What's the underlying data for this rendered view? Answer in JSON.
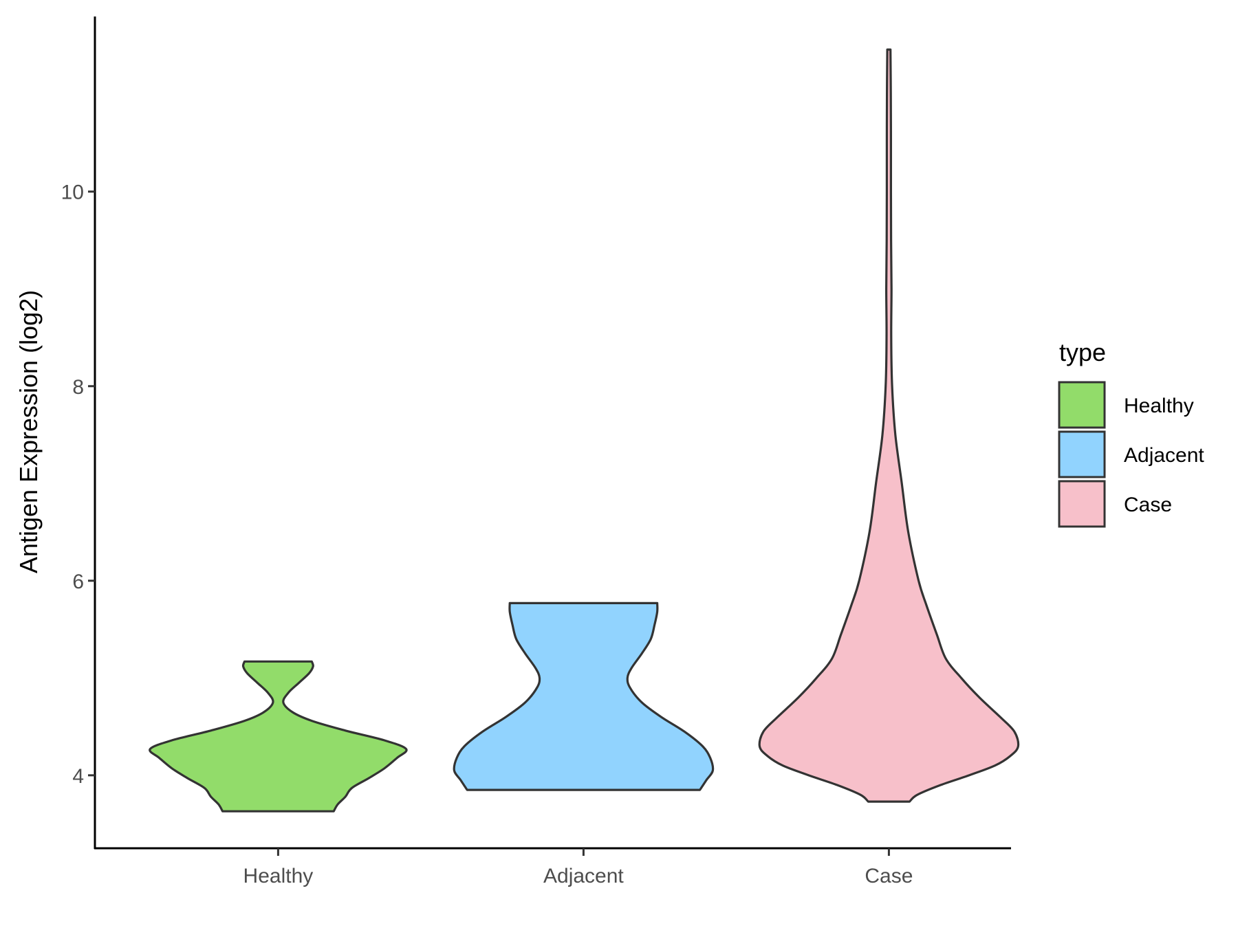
{
  "chart_data": {
    "type": "violin",
    "title": "",
    "xlabel": "",
    "ylabel": "Antigen Expression (log2)",
    "ylim": [
      3.25,
      11.8
    ],
    "yticks": [
      4,
      6,
      8,
      10
    ],
    "grid": false,
    "categories": [
      "Healthy",
      "Adjacent",
      "Case"
    ],
    "colors": {
      "Healthy": "#92dc6a",
      "Adjacent": "#91d3fe",
      "Case": "#f7c0ca",
      "outline": "#333333"
    },
    "legend": {
      "title": "type",
      "position": "right",
      "entries": [
        "Healthy",
        "Adjacent",
        "Case"
      ]
    },
    "series": [
      {
        "category": "Healthy",
        "min": 3.63,
        "max": 5.17,
        "density_profile": [
          [
            3.63,
            0.43
          ],
          [
            3.7,
            0.46
          ],
          [
            3.78,
            0.52
          ],
          [
            3.87,
            0.57
          ],
          [
            3.97,
            0.7
          ],
          [
            4.07,
            0.82
          ],
          [
            4.18,
            0.92
          ],
          [
            4.27,
            0.99
          ],
          [
            4.36,
            0.82
          ],
          [
            4.46,
            0.52
          ],
          [
            4.56,
            0.26
          ],
          [
            4.65,
            0.11
          ],
          [
            4.75,
            0.04
          ],
          [
            4.85,
            0.08
          ],
          [
            4.95,
            0.16
          ],
          [
            5.05,
            0.24
          ],
          [
            5.12,
            0.27
          ],
          [
            5.17,
            0.26
          ]
        ]
      },
      {
        "category": "Adjacent",
        "min": 3.85,
        "max": 5.77,
        "density_profile": [
          [
            3.85,
            0.9
          ],
          [
            3.95,
            0.95
          ],
          [
            4.05,
            1.0
          ],
          [
            4.18,
            0.98
          ],
          [
            4.3,
            0.92
          ],
          [
            4.45,
            0.78
          ],
          [
            4.6,
            0.6
          ],
          [
            4.75,
            0.45
          ],
          [
            4.9,
            0.36
          ],
          [
            5.0,
            0.34
          ],
          [
            5.1,
            0.37
          ],
          [
            5.25,
            0.45
          ],
          [
            5.4,
            0.52
          ],
          [
            5.55,
            0.55
          ],
          [
            5.68,
            0.57
          ],
          [
            5.77,
            0.57
          ]
        ]
      },
      {
        "category": "Case",
        "min": 3.73,
        "max": 11.46,
        "density_profile": [
          [
            3.73,
            0.16
          ],
          [
            3.8,
            0.22
          ],
          [
            3.9,
            0.4
          ],
          [
            4.0,
            0.62
          ],
          [
            4.1,
            0.82
          ],
          [
            4.2,
            0.94
          ],
          [
            4.3,
            1.0
          ],
          [
            4.45,
            0.97
          ],
          [
            4.6,
            0.86
          ],
          [
            4.8,
            0.7
          ],
          [
            5.0,
            0.56
          ],
          [
            5.2,
            0.44
          ],
          [
            5.45,
            0.37
          ],
          [
            5.75,
            0.29
          ],
          [
            6.0,
            0.23
          ],
          [
            6.5,
            0.15
          ],
          [
            7.0,
            0.1
          ],
          [
            7.5,
            0.05
          ],
          [
            8.0,
            0.025
          ],
          [
            8.5,
            0.018
          ],
          [
            9.0,
            0.02
          ],
          [
            9.5,
            0.017
          ],
          [
            10.0,
            0.016
          ],
          [
            10.5,
            0.016
          ],
          [
            11.0,
            0.015
          ],
          [
            11.46,
            0.012
          ]
        ]
      }
    ]
  }
}
